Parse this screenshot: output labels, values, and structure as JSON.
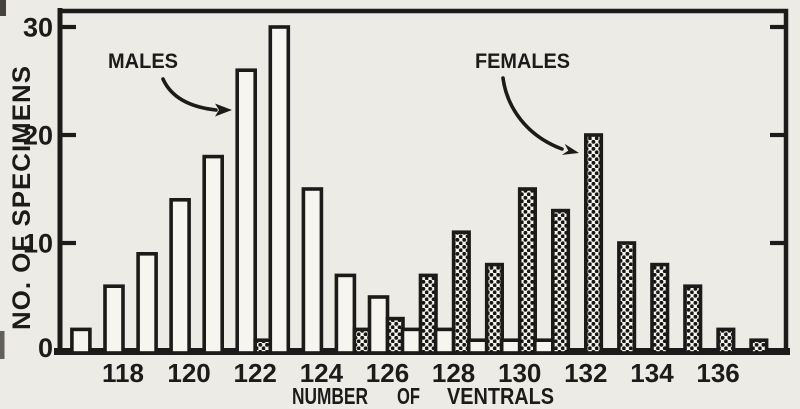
{
  "figure": {
    "y_axis": {
      "title": "NO. OF SPECIMENS",
      "tick_labels": [
        "0",
        "10",
        "20",
        "30"
      ]
    },
    "x_axis": {
      "title": "NUMBER OF VENTRALS",
      "tick_labels": [
        "118",
        "120",
        "122",
        "124",
        "126",
        "128",
        "130",
        "132",
        "134",
        "136"
      ]
    },
    "annotations": {
      "males_label": "MALES",
      "females_label": "FEMALES"
    }
  },
  "colors": {
    "paper": "#edebe6",
    "ink": "#1c1b19",
    "open_bar_fill": "#f6f5f0",
    "stipple_dot": "#171613"
  },
  "chart_data": {
    "type": "bar",
    "title": "",
    "xlabel": "NUMBER OF VENTRALS",
    "ylabel": "NO. OF SPECIMENS",
    "categories": [
      117,
      118,
      119,
      120,
      121,
      122,
      123,
      124,
      125,
      126,
      127,
      128,
      129,
      130,
      131,
      132,
      133,
      134,
      135,
      136,
      137
    ],
    "series": [
      {
        "name": "MALES",
        "style": "open",
        "values": [
          2,
          6,
          9,
          14,
          18,
          26,
          30,
          15,
          7,
          5,
          2,
          2,
          1,
          1,
          1,
          0,
          0,
          0,
          0,
          0,
          0
        ]
      },
      {
        "name": "FEMALES",
        "style": "stippled",
        "values": [
          0,
          0,
          0,
          0,
          0,
          1,
          0,
          0,
          2,
          3,
          7,
          11,
          8,
          15,
          13,
          20,
          10,
          8,
          6,
          2,
          1
        ]
      }
    ],
    "ylim": [
      0,
      30
    ],
    "y_ticks": [
      0,
      10,
      20,
      30
    ],
    "x_ticks_labeled": [
      118,
      120,
      122,
      124,
      126,
      128,
      130,
      132,
      134,
      136
    ],
    "grid": false,
    "legend": "in-plot labels with curved arrows pointing at a male bar and a female bar"
  }
}
